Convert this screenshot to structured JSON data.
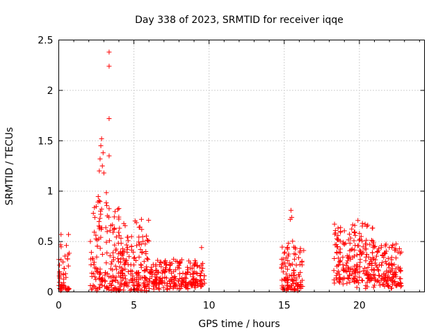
{
  "chart_data": {
    "type": "scatter",
    "title": "Day 338 of 2023, SRMTID for receiver iqqe",
    "xlabel": "GPS time / hours",
    "ylabel": "SRMTID / TECUs",
    "xlim": [
      0,
      24.33
    ],
    "ylim": [
      0,
      2.5
    ],
    "x_ticks": [
      0,
      5,
      10,
      15,
      20
    ],
    "x_tick_labels": [
      "0",
      "5",
      "10",
      "15",
      "20"
    ],
    "y_ticks": [
      0,
      0.5,
      1,
      1.5,
      2,
      2.5
    ],
    "y_tick_labels": [
      "0",
      "0.5",
      "1",
      "1.5",
      "2",
      "2.5"
    ],
    "grid": true,
    "marker": "+",
    "marker_color": "#ff0000",
    "series": [
      {
        "name": "SRMTID",
        "clusters": [
          {
            "x_start": 0.0,
            "x_end": 0.7,
            "n": 50,
            "y_base": 0.18,
            "y_spread": 0.25,
            "y_peak": 0.57
          },
          {
            "x_start": 2.1,
            "x_end": 4.0,
            "n": 150,
            "y_base": 0.35,
            "y_spread": 0.45,
            "y_peak": 1.0
          },
          {
            "x_start": 4.0,
            "x_end": 6.0,
            "n": 170,
            "y_base": 0.25,
            "y_spread": 0.3,
            "y_peak": 0.72
          },
          {
            "x_start": 6.0,
            "x_end": 9.7,
            "n": 230,
            "y_base": 0.15,
            "y_spread": 0.12,
            "y_peak": 0.45
          },
          {
            "x_start": 14.8,
            "x_end": 16.3,
            "n": 110,
            "y_base": 0.18,
            "y_spread": 0.22,
            "y_peak": 0.55
          },
          {
            "x_start": 18.3,
            "x_end": 21.0,
            "n": 210,
            "y_base": 0.3,
            "y_spread": 0.25,
            "y_peak": 0.7
          },
          {
            "x_start": 21.0,
            "x_end": 22.8,
            "n": 130,
            "y_base": 0.22,
            "y_spread": 0.18,
            "y_peak": 0.48
          }
        ],
        "outliers": [
          {
            "x": 3.35,
            "y": 2.38
          },
          {
            "x": 3.35,
            "y": 2.24
          },
          {
            "x": 3.35,
            "y": 1.72
          },
          {
            "x": 3.35,
            "y": 1.35
          },
          {
            "x": 2.85,
            "y": 1.52
          },
          {
            "x": 2.8,
            "y": 1.45
          },
          {
            "x": 2.75,
            "y": 1.32
          },
          {
            "x": 2.95,
            "y": 1.38
          },
          {
            "x": 2.9,
            "y": 1.25
          },
          {
            "x": 3.0,
            "y": 1.18
          },
          {
            "x": 2.7,
            "y": 1.2
          },
          {
            "x": 15.45,
            "y": 0.81
          },
          {
            "x": 15.5,
            "y": 0.74
          },
          {
            "x": 15.4,
            "y": 0.72
          },
          {
            "x": 19.9,
            "y": 0.71
          },
          {
            "x": 20.2,
            "y": 0.68
          },
          {
            "x": 20.5,
            "y": 0.65
          },
          {
            "x": 5.5,
            "y": 0.72
          },
          {
            "x": 2.3,
            "y": 0.78
          },
          {
            "x": 2.4,
            "y": 0.74
          },
          {
            "x": 9.5,
            "y": 0.44
          },
          {
            "x": 0.65,
            "y": 0.57
          },
          {
            "x": 0.15,
            "y": 0.57
          }
        ]
      }
    ]
  }
}
